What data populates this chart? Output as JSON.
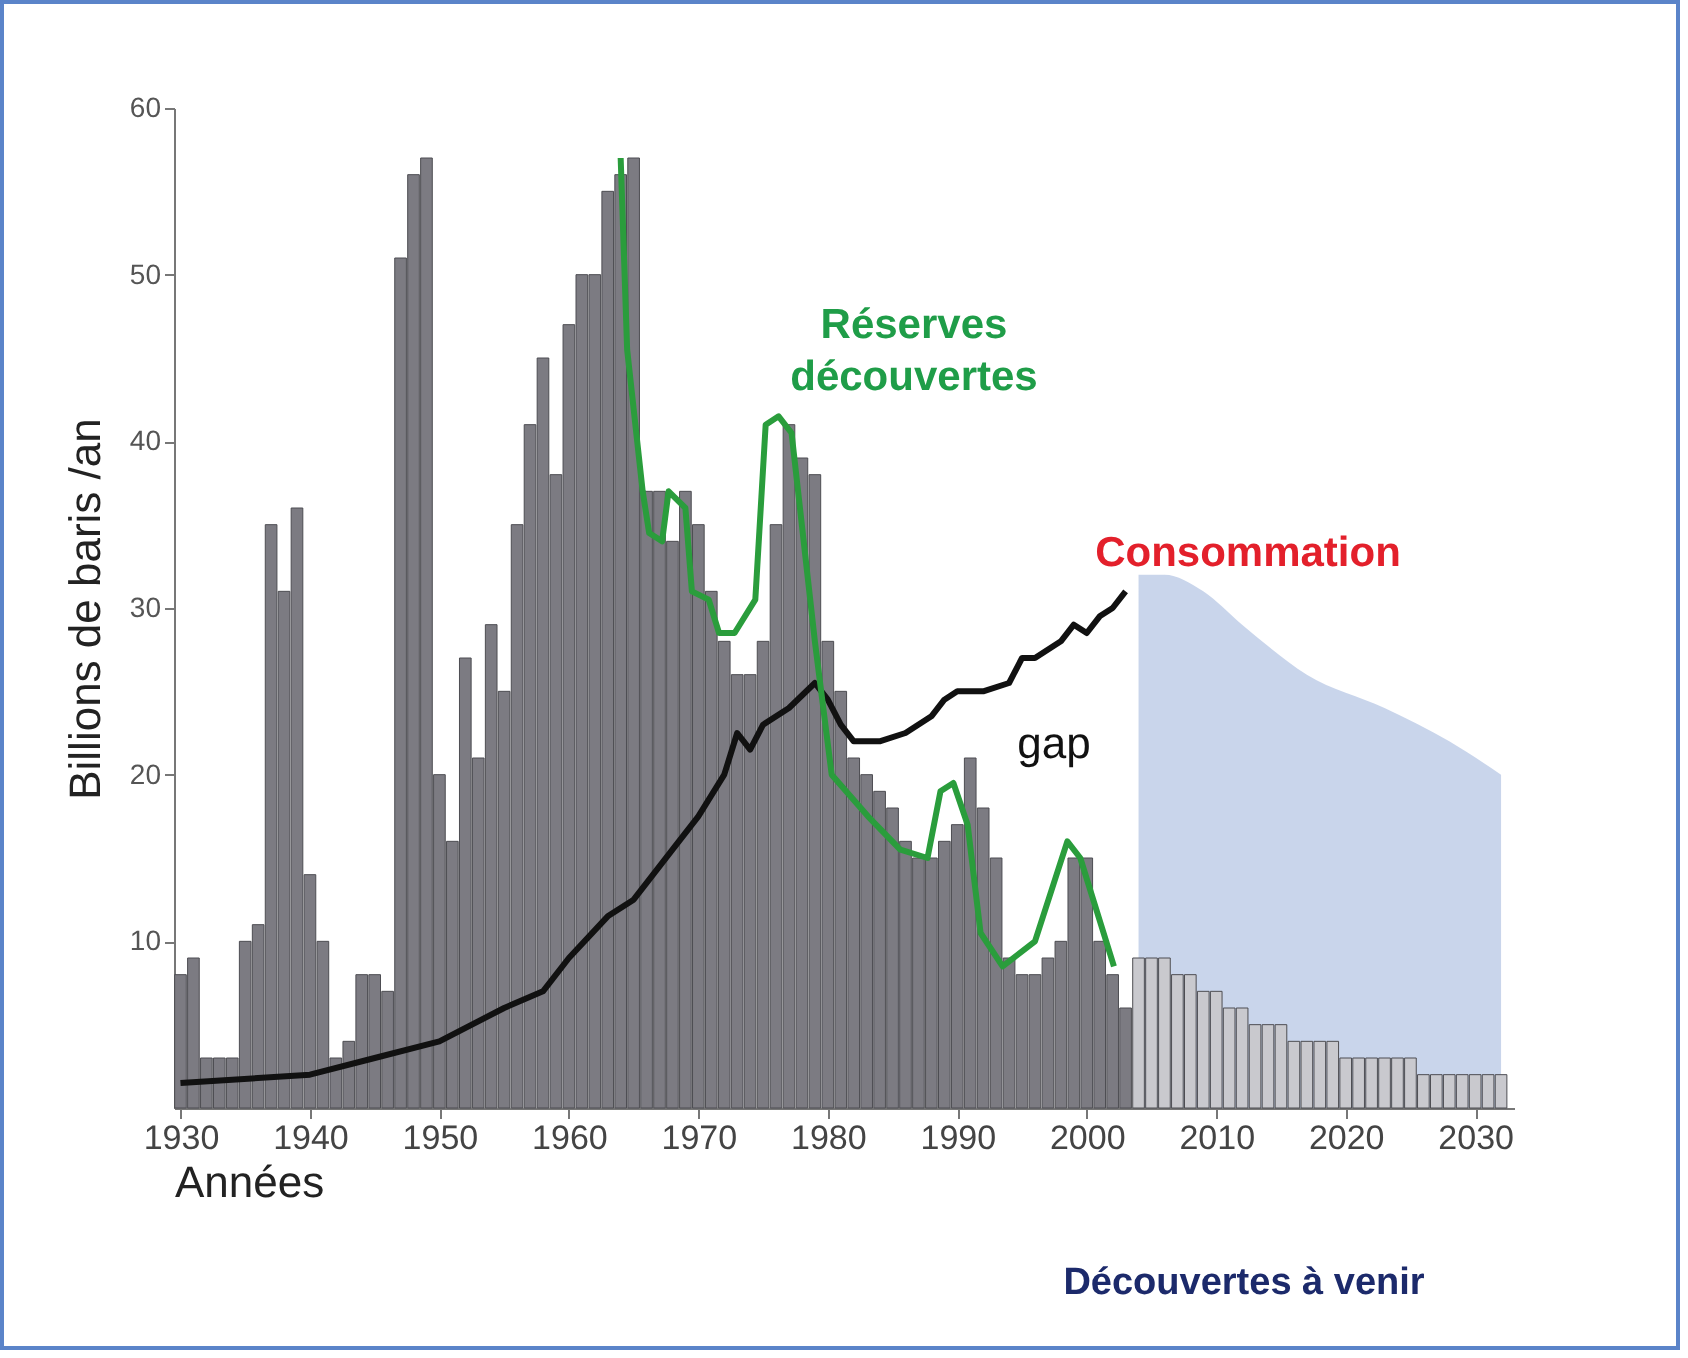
{
  "chart_data": {
    "type": "bar",
    "xlabel": "Années",
    "ylabel": "Billions de baris /an",
    "xlim": [
      1929.5,
      2033
    ],
    "xticks": [
      1930,
      1940,
      1950,
      1960,
      1970,
      1980,
      1990,
      2000,
      2010,
      2020,
      2030
    ],
    "ylim": [
      0,
      60
    ],
    "yticks": [
      10,
      20,
      30,
      40,
      50,
      60
    ],
    "grid": false,
    "marker": "none",
    "annotations": [
      "Réserves découvertes",
      "Consommation",
      "gap",
      "Découvertes à venir"
    ],
    "series": [
      {
        "type": "area",
        "color": "#bccbe6",
        "x": [
          2004,
          2006,
          2009,
          2012,
          2017,
          2023,
          2028,
          2032
        ],
        "values": [
          32,
          32,
          31,
          29,
          26,
          24,
          22,
          20
        ]
      },
      {
        "color": "#7c7b82",
        "x": [
          1930,
          1931,
          1932,
          1933,
          1934,
          1935,
          1936,
          1937,
          1938,
          1939,
          1940,
          1941,
          1942,
          1943,
          1944,
          1945,
          1946,
          1947,
          1948,
          1949,
          1950,
          1951,
          1952,
          1953,
          1954,
          1955,
          1956,
          1957,
          1958,
          1959,
          1960,
          1961,
          1962,
          1963,
          1964,
          1965,
          1966,
          1967,
          1968,
          1969,
          1970,
          1971,
          1972,
          1973,
          1974,
          1975,
          1976,
          1977,
          1978,
          1979,
          1980,
          1981,
          1982,
          1983,
          1984,
          1985,
          1986,
          1987,
          1988,
          1989,
          1990,
          1991,
          1992,
          1993,
          1994,
          1995,
          1996,
          1997,
          1998,
          1999,
          2000,
          2001,
          2002,
          2003
        ],
        "values": [
          8,
          9,
          3,
          3,
          3,
          10,
          11,
          35,
          31,
          36,
          14,
          10,
          3,
          4,
          8,
          8,
          7,
          51,
          56,
          57,
          20,
          16,
          27,
          21,
          29,
          25,
          35,
          41,
          45,
          38,
          47,
          50,
          50,
          55,
          56,
          57,
          37,
          37,
          34,
          37,
          35,
          31,
          28,
          26,
          26,
          28,
          35,
          41,
          39,
          38,
          28,
          25,
          21,
          20,
          19,
          18,
          16,
          15,
          15,
          16,
          17,
          21,
          18,
          15,
          9,
          8,
          8,
          9,
          10,
          15,
          15,
          10,
          8,
          6
        ]
      },
      {
        "color": "#c9c9ce",
        "x": [
          2004,
          2005,
          2006,
          2007,
          2008,
          2009,
          2010,
          2011,
          2012,
          2013,
          2014,
          2015,
          2016,
          2017,
          2018,
          2019,
          2020,
          2021,
          2022,
          2023,
          2024,
          2025,
          2026,
          2027,
          2028,
          2029,
          2030,
          2031,
          2032
        ],
        "values": [
          9,
          9,
          9,
          8,
          8,
          7,
          7,
          6,
          6,
          5,
          5,
          5,
          4,
          4,
          4,
          4,
          3,
          3,
          3,
          3,
          3,
          3,
          2,
          2,
          2,
          2,
          2,
          2,
          2
        ]
      },
      {
        "type": "line",
        "color": "#111111",
        "x": [
          1930,
          1940,
          1945,
          1950,
          1955,
          1958,
          1960,
          1963,
          1965,
          1968,
          1970,
          1972,
          1973,
          1974,
          1975,
          1977,
          1979,
          1980,
          1981,
          1982,
          1984,
          1986,
          1988,
          1989,
          1990,
          1992,
          1994,
          1995,
          1996,
          1998,
          1999,
          2000,
          2001,
          2002,
          2003
        ],
        "values": [
          1.5,
          2,
          3,
          4,
          6,
          7,
          9,
          11.5,
          12.5,
          15.5,
          17.5,
          20,
          22.5,
          21.5,
          23,
          24,
          25.5,
          24.5,
          23,
          22,
          22,
          22.5,
          23.5,
          24.5,
          25,
          25,
          25.5,
          27,
          27,
          28,
          29,
          28.5,
          29.5,
          30,
          31
        ]
      },
      {
        "type": "line",
        "color": "#2a9d3c",
        "x": [
          1964,
          1964.5,
          1965.7,
          1966.2,
          1967.2,
          1967.7,
          1969,
          1969.5,
          1970.8,
          1971.6,
          1972.8,
          1974.4,
          1975.2,
          1976.2,
          1977.2,
          1979,
          1980.3,
          1983.1,
          1985.6,
          1987.7,
          1988.7,
          1989.7,
          1990.8,
          1991.8,
          1993.5,
          1996,
          1998.5,
          1999.5,
          2001.1,
          2002.1
        ],
        "values": [
          57,
          45.5,
          37,
          34.5,
          34,
          37,
          36,
          31,
          30.5,
          28.5,
          28.5,
          30.5,
          41,
          41.5,
          40.5,
          28,
          20,
          17.5,
          15.5,
          15,
          19,
          19.5,
          17,
          10.5,
          8.5,
          10,
          16,
          15,
          11,
          8.5
        ]
      }
    ]
  }
}
